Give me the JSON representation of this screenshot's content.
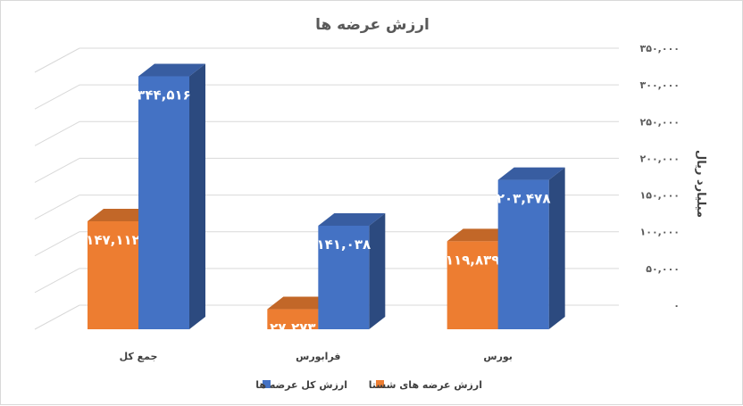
{
  "chart_data": {
    "type": "bar",
    "title": "ارزش عرضه ها",
    "ylabel": "میلیارد ریال",
    "ylim": [
      0,
      350000
    ],
    "yticks": [
      "۰",
      "۵۰,۰۰۰",
      "۱۰۰,۰۰۰",
      "۱۵۰,۰۰۰",
      "۲۰۰,۰۰۰",
      "۲۵۰,۰۰۰",
      "۳۰۰,۰۰۰",
      "۳۵۰,۰۰۰"
    ],
    "categories": [
      "جمع کل",
      "فرابورس",
      "بورس"
    ],
    "series": [
      {
        "name": "ارزش عرضه های شستا",
        "color": "#ED7D31",
        "values": [
          147112,
          27273,
          119839
        ],
        "labels": [
          "۱۴۷,۱۱۲",
          "۲۷,۲۷۳",
          "۱۱۹,۸۳۹"
        ]
      },
      {
        "name": "ارزش کل عرضه ها",
        "color": "#4472C4",
        "values": [
          344516,
          141038,
          203478
        ],
        "labels": [
          "۳۴۴,۵۱۶",
          "۱۴۱,۰۳۸",
          "۲۰۳,۴۷۸"
        ]
      }
    ],
    "grid": true,
    "legend": "bottom",
    "projection": "3d"
  }
}
